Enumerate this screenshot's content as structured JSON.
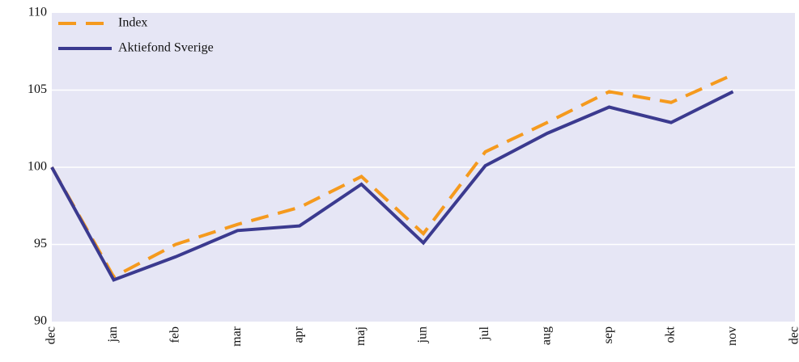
{
  "chart_data": {
    "type": "line",
    "categories": [
      "dec",
      "jan",
      "feb",
      "mar",
      "apr",
      "maj",
      "jun",
      "jul",
      "aug",
      "sep",
      "okt",
      "nov",
      "dec"
    ],
    "series": [
      {
        "name": "Index",
        "color": "#f59a1e",
        "dashed": true,
        "values": [
          100,
          92.9,
          95.0,
          96.3,
          97.4,
          99.4,
          95.7,
          101.0,
          102.9,
          104.9,
          104.2,
          106.0,
          null
        ]
      },
      {
        "name": "Aktiefond Sverige",
        "color": "#3b3a8f",
        "dashed": false,
        "values": [
          100,
          92.7,
          94.2,
          95.9,
          96.2,
          98.9,
          95.1,
          100.1,
          102.2,
          103.9,
          102.9,
          104.9,
          null
        ]
      }
    ],
    "ylim": [
      90,
      110
    ],
    "yticks": [
      90,
      95,
      100,
      105,
      110
    ],
    "grid": true,
    "legend": "top-left"
  }
}
